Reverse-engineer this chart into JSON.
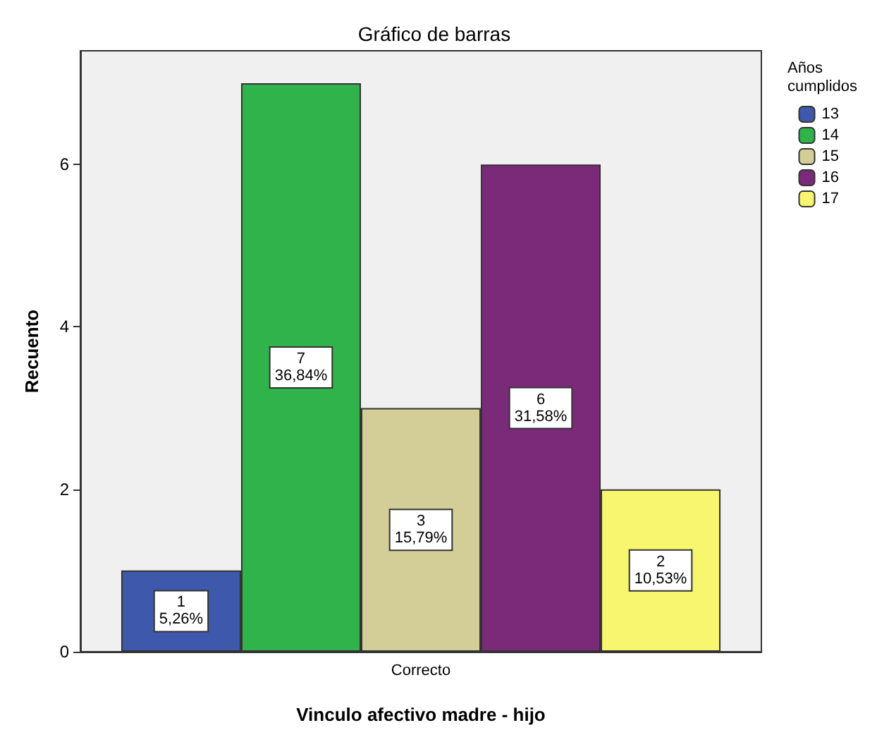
{
  "chart_data": {
    "type": "bar",
    "title": "Gráfico de barras",
    "xlabel": "Vinculo afectivo madre - hijo",
    "ylabel": "Recuento",
    "legend_title": "Años cumplidos",
    "categories": [
      "Correcto"
    ],
    "series": [
      {
        "name": "13",
        "color": "#3e58ab",
        "values": [
          1
        ],
        "value_labels": [
          "1\n5,26%"
        ]
      },
      {
        "name": "14",
        "color": "#2fb34a",
        "values": [
          7
        ],
        "value_labels": [
          "7\n36,84%"
        ]
      },
      {
        "name": "15",
        "color": "#d3ce98",
        "values": [
          3
        ],
        "value_labels": [
          "3\n15,79%"
        ]
      },
      {
        "name": "16",
        "color": "#7b2a7a",
        "values": [
          6
        ],
        "value_labels": [
          "6\n31,58%"
        ]
      },
      {
        "name": "17",
        "color": "#f8f56e",
        "values": [
          2
        ],
        "value_labels": [
          "2\n10,53%"
        ]
      }
    ],
    "ylim": [
      0,
      7.4
    ],
    "yticks": [
      0,
      2,
      4,
      6
    ],
    "grid": false,
    "legend": "right"
  }
}
